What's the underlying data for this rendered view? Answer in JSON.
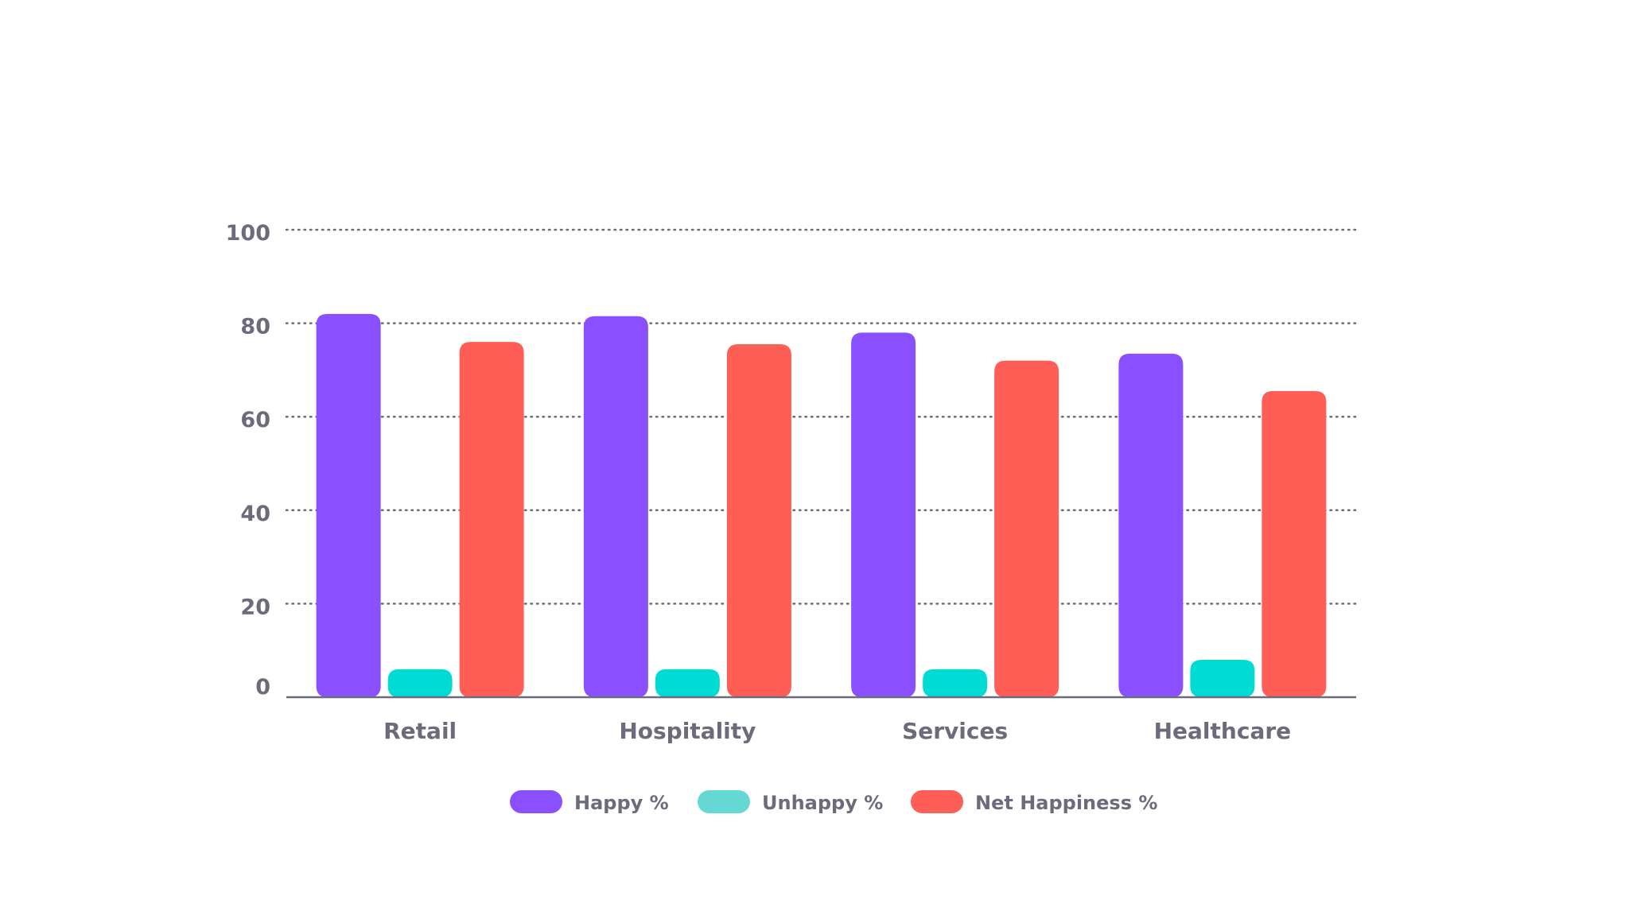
{
  "chart_data": {
    "type": "bar",
    "categories": [
      "Retail",
      "Hospitality",
      "Services",
      "Healthcare"
    ],
    "series": [
      {
        "name": "Happy %",
        "color": "#8a4fff",
        "legend_color": "#8a4fff",
        "values": [
          82,
          81.5,
          78,
          73.5
        ]
      },
      {
        "name": "Unhappy %",
        "color": "#00dcd4",
        "legend_color": "#66d8d4",
        "values": [
          6,
          6,
          6,
          8
        ]
      },
      {
        "name": "Net Happiness %",
        "color": "#ff5e57",
        "legend_color": "#ff5e57",
        "values": [
          76,
          75.5,
          72,
          65.5
        ]
      }
    ],
    "yticks": [
      0,
      20,
      40,
      60,
      80,
      100
    ],
    "ylim": [
      0,
      100
    ],
    "xlabel": "",
    "ylabel": "",
    "grid": true,
    "legend_position": "bottom-center",
    "colors": {
      "text": "#6b6b7b",
      "grid": "#6b6b7b",
      "axis": "#6b6b7b"
    }
  }
}
